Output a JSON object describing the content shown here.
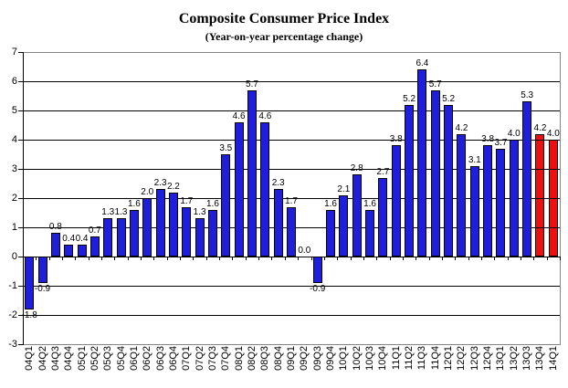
{
  "chart_data": {
    "type": "bar",
    "title": "Composite Consumer Price Index",
    "subtitle": "(Year-on-year percentage change)",
    "xlabel": "",
    "ylabel": "",
    "categories": [
      "04Q1",
      "04Q2",
      "04Q3",
      "04Q4",
      "05Q1",
      "05Q2",
      "05Q3",
      "05Q4",
      "06Q1",
      "06Q2",
      "06Q3",
      "06Q4",
      "07Q1",
      "07Q2",
      "07Q3",
      "07Q4",
      "08Q1",
      "08Q2",
      "08Q3",
      "08Q4",
      "09Q1",
      "09Q2",
      "09Q3",
      "09Q4",
      "10Q1",
      "10Q2",
      "10Q3",
      "10Q4",
      "11Q1",
      "11Q2",
      "11Q3",
      "11Q4",
      "12Q1",
      "12Q2",
      "12Q3",
      "12Q4",
      "13Q1",
      "13Q2",
      "13Q3",
      "13Q4",
      "14Q1"
    ],
    "values": [
      -1.8,
      -0.9,
      0.8,
      0.4,
      0.4,
      0.7,
      1.3,
      1.3,
      1.6,
      2.0,
      2.3,
      2.2,
      1.7,
      1.3,
      1.6,
      3.5,
      4.6,
      5.7,
      4.6,
      2.3,
      1.7,
      0.0,
      -0.9,
      1.6,
      2.1,
      2.8,
      1.6,
      2.7,
      3.8,
      5.2,
      6.4,
      5.7,
      5.2,
      4.2,
      3.1,
      3.8,
      3.7,
      4.0,
      5.3,
      4.2,
      4.0
    ],
    "highlight_categories": [
      "13Q4",
      "14Q1"
    ],
    "data_labels": true,
    "label_decimals": 1,
    "ylim": [
      -3,
      7
    ],
    "ytick_step": 1,
    "grid": true,
    "legend": false,
    "colors": {
      "bar": "#1e1edc",
      "highlight": "#ee0f0f",
      "bar_border": "#000000",
      "gridline": "#000000",
      "plot_border": "#848484",
      "axis": "#000000",
      "text": "#000000"
    }
  }
}
